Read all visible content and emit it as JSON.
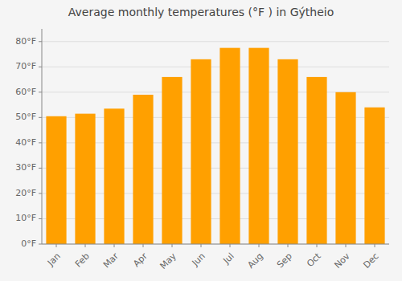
{
  "chart_data": {
    "type": "bar",
    "title": "Average monthly temperatures (°F ) in Gýtheio",
    "categories": [
      "Jan",
      "Feb",
      "Mar",
      "Apr",
      "May",
      "Jun",
      "Jul",
      "Aug",
      "Sep",
      "Oct",
      "Nov",
      "Dec"
    ],
    "values": [
      50.5,
      51.5,
      53.5,
      59.0,
      66.0,
      73.0,
      77.5,
      77.5,
      73.0,
      66.0,
      60.0,
      54.0
    ],
    "color": "#FFA000",
    "ylim": [
      0,
      85
    ],
    "yticks": [
      {
        "value": 0,
        "label": "0°F"
      },
      {
        "value": 10,
        "label": "10°F"
      },
      {
        "value": 20,
        "label": "20°F"
      },
      {
        "value": 30,
        "label": "30°F"
      },
      {
        "value": 40,
        "label": "40°F"
      },
      {
        "value": 50,
        "label": "50°F"
      },
      {
        "value": 60,
        "label": "60°F"
      },
      {
        "value": 70,
        "label": "70°F"
      },
      {
        "value": 80,
        "label": "80°F"
      }
    ],
    "grid": true
  }
}
